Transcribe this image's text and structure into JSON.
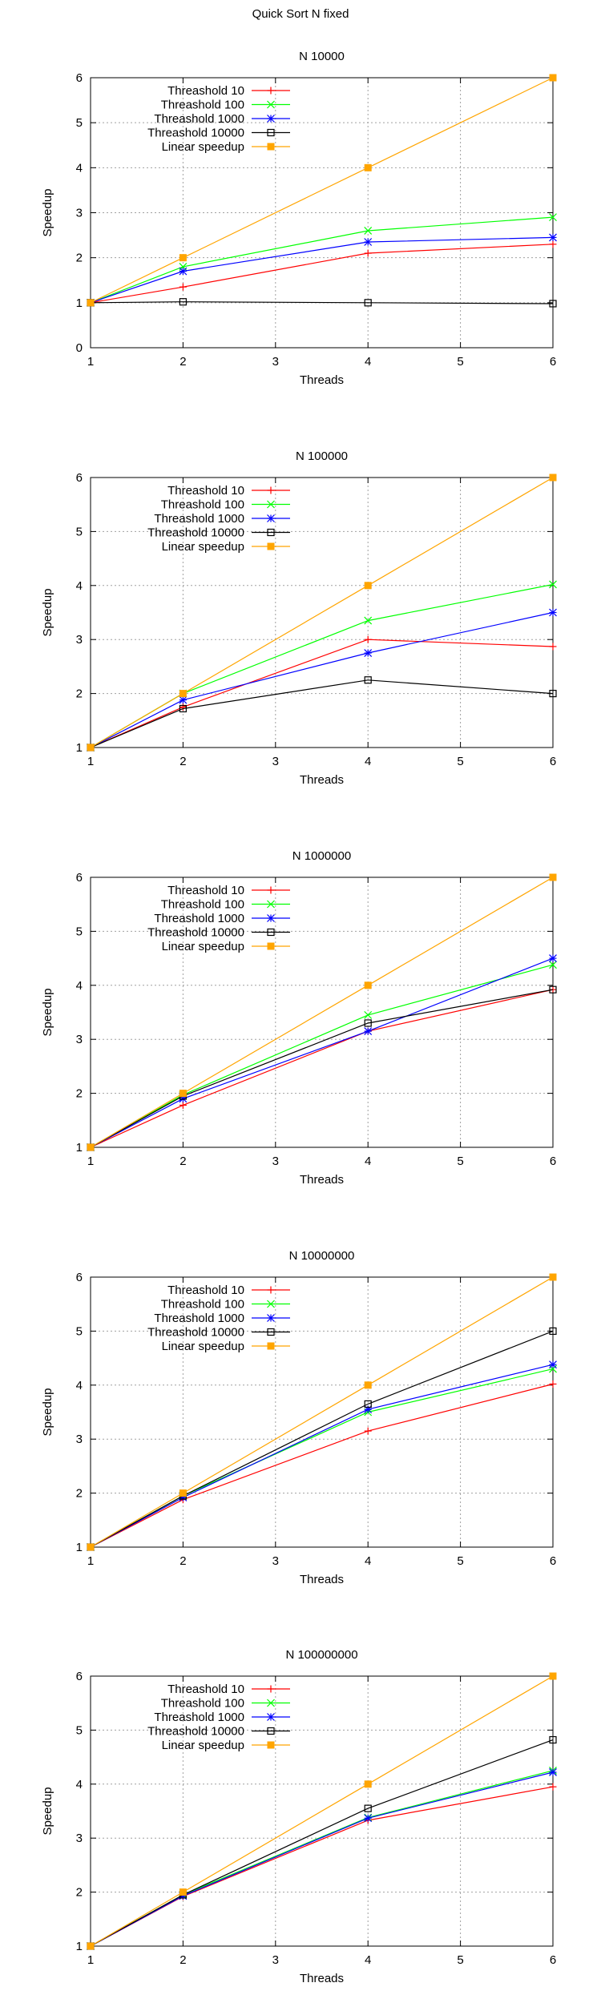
{
  "figure_title": "Quick Sort N fixed",
  "chart_data": [
    {
      "type": "line",
      "title": "N 10000",
      "xlabel": "Threads",
      "ylabel": "Speedup",
      "x": [
        1,
        2,
        4,
        6
      ],
      "xlim": [
        1,
        6
      ],
      "ylim": [
        0,
        6
      ],
      "xticks": [
        1,
        2,
        3,
        4,
        5,
        6
      ],
      "yticks": [
        0,
        1,
        2,
        3,
        4,
        5,
        6
      ],
      "grid": true,
      "legend": "top-left",
      "series": [
        {
          "name": "Threashold 10",
          "values": [
            1,
            1.35,
            2.1,
            2.3
          ],
          "color": "#ff0000",
          "marker": "plus"
        },
        {
          "name": "Threashold 100",
          "values": [
            1,
            1.8,
            2.6,
            2.9
          ],
          "color": "#00ff00",
          "marker": "cross"
        },
        {
          "name": "Threashold 1000",
          "values": [
            1,
            1.7,
            2.35,
            2.45
          ],
          "color": "#0000ff",
          "marker": "star"
        },
        {
          "name": "Threashold 10000",
          "values": [
            1,
            1.02,
            1.0,
            0.98
          ],
          "color": "#000000",
          "marker": "square"
        },
        {
          "name": "Linear speedup",
          "values": [
            1,
            2,
            4,
            6
          ],
          "color": "#ffa500",
          "marker": "filledsquare"
        }
      ]
    },
    {
      "type": "line",
      "title": "N 100000",
      "xlabel": "Threads",
      "ylabel": "Speedup",
      "x": [
        1,
        2,
        4,
        6
      ],
      "xlim": [
        1,
        6
      ],
      "ylim": [
        1,
        6
      ],
      "xticks": [
        1,
        2,
        3,
        4,
        5,
        6
      ],
      "yticks": [
        1,
        2,
        3,
        4,
        5,
        6
      ],
      "grid": true,
      "legend": "top-left",
      "series": [
        {
          "name": "Threashold 10",
          "values": [
            1,
            1.75,
            3.0,
            2.87
          ],
          "color": "#ff0000",
          "marker": "plus"
        },
        {
          "name": "Threashold 100",
          "values": [
            1,
            2.0,
            3.35,
            4.02
          ],
          "color": "#00ff00",
          "marker": "cross"
        },
        {
          "name": "Threashold 1000",
          "values": [
            1,
            1.88,
            2.75,
            3.5
          ],
          "color": "#0000ff",
          "marker": "star"
        },
        {
          "name": "Threashold 10000",
          "values": [
            1,
            1.72,
            2.25,
            2.0
          ],
          "color": "#000000",
          "marker": "square"
        },
        {
          "name": "Linear speedup",
          "values": [
            1,
            2,
            4,
            6
          ],
          "color": "#ffa500",
          "marker": "filledsquare"
        }
      ]
    },
    {
      "type": "line",
      "title": "N 1000000",
      "xlabel": "Threads",
      "ylabel": "Speedup",
      "x": [
        1,
        2,
        4,
        6
      ],
      "xlim": [
        1,
        6
      ],
      "ylim": [
        1,
        6
      ],
      "xticks": [
        1,
        2,
        3,
        4,
        5,
        6
      ],
      "yticks": [
        1,
        2,
        3,
        4,
        5,
        6
      ],
      "grid": true,
      "legend": "top-left",
      "series": [
        {
          "name": "Threashold 10",
          "values": [
            1,
            1.78,
            3.15,
            3.92
          ],
          "color": "#ff0000",
          "marker": "plus"
        },
        {
          "name": "Threashold 100",
          "values": [
            1,
            1.97,
            3.45,
            4.38
          ],
          "color": "#00ff00",
          "marker": "cross"
        },
        {
          "name": "Threashold 1000",
          "values": [
            1,
            1.9,
            3.15,
            4.5
          ],
          "color": "#0000ff",
          "marker": "star"
        },
        {
          "name": "Threashold 10000",
          "values": [
            1,
            1.95,
            3.3,
            3.92
          ],
          "color": "#000000",
          "marker": "square"
        },
        {
          "name": "Linear speedup",
          "values": [
            1,
            2,
            4,
            6
          ],
          "color": "#ffa500",
          "marker": "filledsquare"
        }
      ]
    },
    {
      "type": "line",
      "title": "N 10000000",
      "xlabel": "Threads",
      "ylabel": "Speedup",
      "x": [
        1,
        2,
        4,
        6
      ],
      "xlim": [
        1,
        6
      ],
      "ylim": [
        1,
        6
      ],
      "xticks": [
        1,
        2,
        3,
        4,
        5,
        6
      ],
      "yticks": [
        1,
        2,
        3,
        4,
        5,
        6
      ],
      "grid": true,
      "legend": "top-left",
      "series": [
        {
          "name": "Threashold 10",
          "values": [
            1,
            1.88,
            3.15,
            4.02
          ],
          "color": "#ff0000",
          "marker": "plus"
        },
        {
          "name": "Threashold 100",
          "values": [
            1,
            1.95,
            3.5,
            4.3
          ],
          "color": "#00ff00",
          "marker": "cross"
        },
        {
          "name": "Threashold 1000",
          "values": [
            1,
            1.92,
            3.55,
            4.38
          ],
          "color": "#0000ff",
          "marker": "star"
        },
        {
          "name": "Threashold 10000",
          "values": [
            1,
            1.95,
            3.65,
            5.0
          ],
          "color": "#000000",
          "marker": "square"
        },
        {
          "name": "Linear speedup",
          "values": [
            1,
            2,
            4,
            6
          ],
          "color": "#ffa500",
          "marker": "filledsquare"
        }
      ]
    },
    {
      "type": "line",
      "title": "N 100000000",
      "xlabel": "Threads",
      "ylabel": "Speedup",
      "x": [
        1,
        2,
        4,
        6
      ],
      "xlim": [
        1,
        6
      ],
      "ylim": [
        1,
        6
      ],
      "xticks": [
        1,
        2,
        3,
        4,
        5,
        6
      ],
      "yticks": [
        1,
        2,
        3,
        4,
        5,
        6
      ],
      "grid": true,
      "legend": "top-left",
      "series": [
        {
          "name": "Threashold 10",
          "values": [
            1,
            1.92,
            3.33,
            3.95
          ],
          "color": "#ff0000",
          "marker": "plus"
        },
        {
          "name": "Threashold 100",
          "values": [
            1,
            1.95,
            3.38,
            4.25
          ],
          "color": "#00ff00",
          "marker": "cross"
        },
        {
          "name": "Threashold 1000",
          "values": [
            1,
            1.93,
            3.37,
            4.22
          ],
          "color": "#0000ff",
          "marker": "star"
        },
        {
          "name": "Threashold 10000",
          "values": [
            1,
            1.95,
            3.55,
            4.82
          ],
          "color": "#000000",
          "marker": "square"
        },
        {
          "name": "Linear speedup",
          "values": [
            1,
            2,
            4,
            6
          ],
          "color": "#ffa500",
          "marker": "filledsquare"
        }
      ]
    }
  ]
}
